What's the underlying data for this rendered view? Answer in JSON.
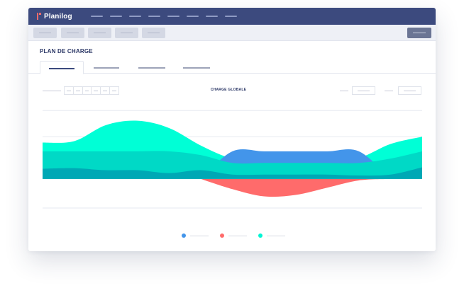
{
  "app": {
    "brand": "Planilog",
    "brand_color": "#ff6b6b",
    "nav_color": "#3c4a7e",
    "nav_links_count": 8
  },
  "toolbar": {
    "buttons": [
      "",
      "",
      "",
      "",
      ""
    ],
    "primary_button": ""
  },
  "page": {
    "title": "PLAN DE CHARGE",
    "tabs": [
      {
        "label": "",
        "active": true
      },
      {
        "label": "",
        "active": false
      },
      {
        "label": "",
        "active": false
      },
      {
        "label": "",
        "active": false
      }
    ]
  },
  "filters": {
    "stepper_segments": 6,
    "field_1": "",
    "field_2": ""
  },
  "chart_data": {
    "type": "area",
    "title": "CHARGE GLOBALE",
    "xlabel": "",
    "ylabel": "",
    "grid": true,
    "legend_position": "bottom",
    "x": [
      0,
      1,
      2,
      3,
      4,
      5,
      6,
      7,
      8,
      9,
      10,
      11,
      12
    ],
    "baseline_index": 0,
    "series": [
      {
        "color": "#00a8b5",
        "values": [
          0.35,
          0.37,
          0.3,
          0.3,
          0.2,
          0.3,
          0.15,
          0.15,
          0.15,
          0.15,
          0.12,
          0.15,
          0.4
        ]
      },
      {
        "color": "#00d9c6",
        "values": [
          0.95,
          0.95,
          0.95,
          0.95,
          0.95,
          0.82,
          0.55,
          0.55,
          0.55,
          0.55,
          0.55,
          0.7,
          0.95
        ]
      },
      {
        "color": "#00ffd6",
        "values": [
          1.25,
          1.3,
          1.85,
          2.0,
          1.75,
          1.15,
          0.7,
          0.65,
          0.62,
          0.62,
          0.72,
          1.2,
          1.45
        ]
      },
      {
        "color": "#4395ea",
        "values": [
          0,
          0,
          0,
          0,
          0,
          0,
          0.95,
          0.95,
          0.95,
          0.95,
          0.95,
          0,
          0
        ]
      },
      {
        "color": "#ff6b6b",
        "values": [
          0,
          0,
          0,
          0,
          0,
          0,
          -0.35,
          -0.6,
          -0.55,
          -0.3,
          -0.05,
          0,
          0
        ]
      }
    ],
    "ylim": [
      -1.0,
      2.6
    ]
  },
  "legend": [
    {
      "color": "#4395ea",
      "label": ""
    },
    {
      "color": "#ff6b6b",
      "label": ""
    },
    {
      "color": "#00f5d4",
      "label": ""
    }
  ]
}
